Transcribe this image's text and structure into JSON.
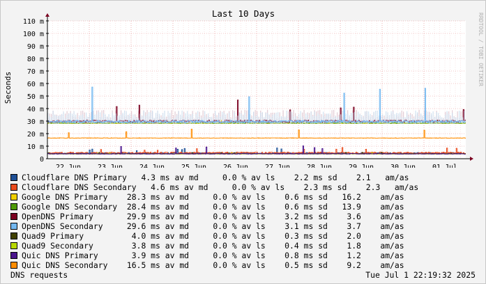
{
  "chart_data": {
    "type": "line",
    "title": "Last 10 Days",
    "ylabel": "Seconds",
    "side_label": "RRDTOOL / TOBI OETIKER",
    "ylim": [
      0,
      0.11
    ],
    "y_ticks": [
      {
        "v": 0,
        "label": "0"
      },
      {
        "v": 0.01,
        "label": "10 m"
      },
      {
        "v": 0.02,
        "label": "20 m"
      },
      {
        "v": 0.03,
        "label": "30 m"
      },
      {
        "v": 0.04,
        "label": "40 m"
      },
      {
        "v": 0.05,
        "label": "50 m"
      },
      {
        "v": 0.06,
        "label": "60 m"
      },
      {
        "v": 0.07,
        "label": "70 m"
      },
      {
        "v": 0.08,
        "label": "80 m"
      },
      {
        "v": 0.09,
        "label": "90 m"
      },
      {
        "v": 0.1,
        "label": "100 m"
      },
      {
        "v": 0.11,
        "label": "110 m"
      }
    ],
    "x_range_days": [
      0,
      10
    ],
    "x_ticks": [
      "22 Jun",
      "23 Jun",
      "24 Jun",
      "25 Jun",
      "26 Jun",
      "27 Jun",
      "28 Jun",
      "29 Jun",
      "30 Jun",
      "01 Jul"
    ],
    "grid": true,
    "series": [
      {
        "name": "Cloudflare DNS Primary",
        "color": "#1f5096",
        "avg": 0.0043,
        "sd": 0.0022,
        "min": 0.003,
        "max": 0.009,
        "loss": "0.0 %",
        "ams": "2.1"
      },
      {
        "name": "Cloudflare DNS Secondary",
        "color": "#ea4b1d",
        "avg": 0.0046,
        "sd": 0.0023,
        "min": 0.003,
        "max": 0.009,
        "loss": "0.0 %",
        "ams": "2.3"
      },
      {
        "name": "Google DNS Primary",
        "color": "#f0d000",
        "avg": 0.0283,
        "sd": 0.0006,
        "min": 0.027,
        "max": 0.031,
        "loss": "0.0 %",
        "ams": "16.2"
      },
      {
        "name": "Google DNS Secondary",
        "color": "#4e9a06",
        "avg": 0.0284,
        "sd": 0.0006,
        "min": 0.027,
        "max": 0.031,
        "loss": "0.0 %",
        "ams": "13.9"
      },
      {
        "name": "OpenDNS Primary",
        "color": "#7b0020",
        "avg": 0.0299,
        "sd": 0.0032,
        "min": 0.028,
        "max": 0.051,
        "loss": "0.0 %",
        "ams": "3.6"
      },
      {
        "name": "OpenDNS Secondary",
        "color": "#73b8f0",
        "avg": 0.0296,
        "sd": 0.0031,
        "min": 0.028,
        "max": 0.065,
        "loss": "0.0 %",
        "ams": "3.7"
      },
      {
        "name": "Quad9 Primary",
        "color": "#404000",
        "avg": 0.004,
        "sd": 0.0003,
        "min": 0.0035,
        "max": 0.005,
        "loss": "0.0 %",
        "ams": "2.0"
      },
      {
        "name": "Quad9 Secondary",
        "color": "#b8d800",
        "avg": 0.0038,
        "sd": 0.0004,
        "min": 0.0033,
        "max": 0.005,
        "loss": "0.0 %",
        "ams": "1.8"
      },
      {
        "name": "Quic DNS Primary",
        "color": "#4a148c",
        "avg": 0.0039,
        "sd": 0.0008,
        "min": 0.003,
        "max": 0.011,
        "loss": "0.0 %",
        "ams": "1.2"
      },
      {
        "name": "Quic DNS Secondary",
        "color": "#ff8c00",
        "avg": 0.0165,
        "sd": 0.0005,
        "min": 0.015,
        "max": 0.027,
        "loss": "0.0 %",
        "ams": "9.2"
      }
    ]
  },
  "legend": [
    {
      "name": "Cloudflare DNS Primary",
      "stats": "   4.3 ms av md     0.0 % av ls    2.2 ms sd    2.1   am/as",
      "color": "#1f5096"
    },
    {
      "name": "Cloudflare DNS Secondary",
      "stats": "   4.6 ms av md     0.0 % av ls    2.3 ms sd    2.3   am/as",
      "color": "#ea4b1d"
    },
    {
      "name": "Google DNS Primary",
      "stats": "    28.3 ms av md     0.0 % av ls    0.6 ms sd   16.2    am/as",
      "color": "#f0d000"
    },
    {
      "name": "Google DNS Secondary",
      "stats": "  28.4 ms av md     0.0 % av ls    0.6 ms sd   13.9    am/as",
      "color": "#4e9a06"
    },
    {
      "name": "OpenDNS Primary",
      "stats": "       29.9 ms av md     0.0 % av ls    3.2 ms sd    3.6    am/as",
      "color": "#7b0020"
    },
    {
      "name": "OpenDNS Secondary",
      "stats": "     29.6 ms av md     0.0 % av ls    3.1 ms sd    3.7    am/as",
      "color": "#73b8f0"
    },
    {
      "name": "Quad9 Primary",
      "stats": "          4.0 ms av md     0.0 % av ls    0.3 ms sd    2.0    am/as",
      "color": "#404000"
    },
    {
      "name": "Quad9 Secondary",
      "stats": "        3.8 ms av md     0.0 % av ls    0.4 ms sd    1.8    am/as",
      "color": "#b8d800"
    },
    {
      "name": "Quic DNS Primary",
      "stats": "       3.9 ms av md     0.0 % av ls    0.8 ms sd    1.2    am/as",
      "color": "#4a148c"
    },
    {
      "name": "Quic DNS Secondary",
      "stats": "    16.5 ms av md     0.0 % av ls    0.5 ms sd    9.2    am/as",
      "color": "#ff8c00"
    }
  ],
  "footer": {
    "left": "DNS requests",
    "right": "Tue Jul  1 22:19:32 2025"
  }
}
